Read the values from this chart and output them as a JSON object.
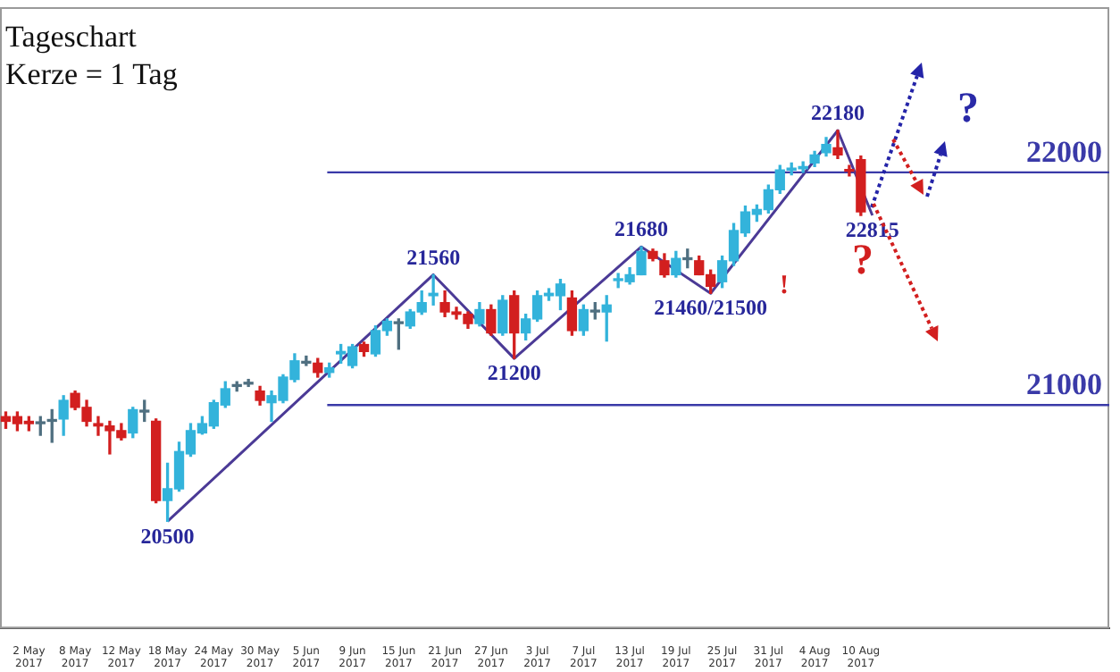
{
  "chart_data": {
    "type": "candlestick",
    "title": "Tageschart",
    "subtitle": "Kerze = 1 Tag",
    "categories": [
      null,
      null,
      "2 May 2017",
      null,
      null,
      null,
      "8 May 2017",
      null,
      null,
      null,
      "12 May 2017",
      null,
      null,
      null,
      "18 May 2017",
      null,
      null,
      null,
      "24 May 2017",
      null,
      null,
      null,
      "30 May 2017",
      null,
      null,
      null,
      "5 Jun 2017",
      null,
      null,
      null,
      "9 Jun 2017",
      null,
      null,
      null,
      "15 Jun 2017",
      null,
      null,
      null,
      "21 Jun 2017",
      null,
      null,
      null,
      "27 Jun 2017",
      null,
      null,
      null,
      "3 Jul 2017",
      null,
      null,
      null,
      "7 Jul 2017",
      null,
      null,
      null,
      "13 Jul 2017",
      null,
      null,
      null,
      "19 Jul 2017",
      null,
      null,
      null,
      "25 Jul 2017",
      null,
      null,
      null,
      "31 Jul 2017",
      null,
      null,
      null,
      "4 Aug 2017",
      null,
      null,
      null,
      "10 Aug 2017",
      null,
      null,
      null,
      null,
      null,
      null,
      null,
      null,
      null,
      null,
      null,
      null,
      null,
      null,
      null,
      null,
      null,
      null,
      null,
      null,
      null
    ],
    "ohlc": [
      [
        20950,
        20970,
        20900,
        20930
      ],
      [
        20950,
        20970,
        20890,
        20920
      ],
      [
        20930,
        20950,
        20890,
        20920
      ],
      [
        20920,
        20950,
        20870,
        20920
      ],
      [
        20930,
        20980,
        20840,
        20930
      ],
      [
        20940,
        21040,
        20870,
        21020
      ],
      [
        21050,
        21060,
        20980,
        20990
      ],
      [
        20990,
        21020,
        20910,
        20930
      ],
      [
        20920,
        20950,
        20870,
        20910
      ],
      [
        20910,
        20930,
        20790,
        20890
      ],
      [
        20890,
        20920,
        20850,
        20860
      ],
      [
        20880,
        20990,
        20860,
        20980
      ],
      [
        20970,
        21020,
        20930,
        20970
      ],
      [
        20930,
        20940,
        20580,
        20590
      ],
      [
        20590,
        20750,
        20500,
        20640
      ],
      [
        20640,
        20840,
        20630,
        20800
      ],
      [
        20790,
        20920,
        20780,
        20890
      ],
      [
        20880,
        20950,
        20875,
        20920
      ],
      [
        20910,
        21020,
        20900,
        21010
      ],
      [
        21000,
        21100,
        20990,
        21070
      ],
      [
        21080,
        21100,
        21060,
        21080
      ],
      [
        21090,
        21110,
        21080,
        21090
      ],
      [
        21060,
        21080,
        21000,
        21020
      ],
      [
        21010,
        21060,
        20930,
        21040
      ],
      [
        21020,
        21130,
        21010,
        21120
      ],
      [
        21110,
        21220,
        21100,
        21190
      ],
      [
        21180,
        21210,
        21170,
        21180
      ],
      [
        21180,
        21200,
        21120,
        21140
      ],
      [
        21140,
        21180,
        21120,
        21160
      ],
      [
        21220,
        21260,
        21180,
        21230
      ],
      [
        21170,
        21260,
        21160,
        21250
      ],
      [
        21260,
        21270,
        21210,
        21230
      ],
      [
        21220,
        21340,
        21210,
        21320
      ],
      [
        21320,
        21370,
        21300,
        21360
      ],
      [
        21350,
        21370,
        21240,
        21350
      ],
      [
        21340,
        21410,
        21330,
        21400
      ],
      [
        21400,
        21490,
        21390,
        21440
      ],
      [
        21470,
        21560,
        21430,
        21480
      ],
      [
        21440,
        21490,
        21380,
        21400
      ],
      [
        21400,
        21420,
        21370,
        21390
      ],
      [
        21390,
        21400,
        21330,
        21350
      ],
      [
        21350,
        21440,
        21340,
        21410
      ],
      [
        21410,
        21430,
        21300,
        21310
      ],
      [
        21310,
        21470,
        21300,
        21450
      ],
      [
        21470,
        21490,
        21200,
        21310
      ],
      [
        21310,
        21390,
        21280,
        21370
      ],
      [
        21370,
        21490,
        21360,
        21470
      ],
      [
        21470,
        21500,
        21450,
        21480
      ],
      [
        21470,
        21540,
        21410,
        21520
      ],
      [
        21460,
        21490,
        21300,
        21320
      ],
      [
        21320,
        21430,
        21300,
        21410
      ],
      [
        21400,
        21440,
        21370,
        21400
      ],
      [
        21400,
        21470,
        21275,
        21430
      ],
      [
        21535,
        21565,
        21505,
        21540
      ],
      [
        21530,
        21590,
        21520,
        21560
      ],
      [
        21560,
        21680,
        21560,
        21660
      ],
      [
        21660,
        21670,
        21620,
        21630
      ],
      [
        21620,
        21650,
        21550,
        21560
      ],
      [
        21560,
        21660,
        21550,
        21630
      ],
      [
        21625,
        21670,
        21590,
        21625
      ],
      [
        21620,
        21640,
        21560,
        21560
      ],
      [
        21560,
        21580,
        21480,
        21510
      ],
      [
        21530,
        21640,
        21505,
        21620
      ],
      [
        21620,
        21780,
        21600,
        21750
      ],
      [
        21740,
        21855,
        21725,
        21830
      ],
      [
        21820,
        21860,
        21790,
        21840
      ],
      [
        21840,
        21945,
        21825,
        21925
      ],
      [
        21925,
        22030,
        21910,
        22010
      ],
      [
        22010,
        22040,
        21990,
        22015
      ],
      [
        22015,
        22045,
        22000,
        22025
      ],
      [
        22040,
        22090,
        22025,
        22075
      ],
      [
        22085,
        22150,
        22070,
        22120
      ],
      [
        22105,
        22180,
        22060,
        22075
      ],
      [
        22010,
        22030,
        21985,
        22005
      ],
      [
        22055,
        22070,
        21815,
        21830
      ],
      null,
      null,
      null,
      null,
      null,
      null,
      null,
      null,
      null,
      null,
      null,
      null,
      null,
      null,
      null,
      null,
      null,
      null,
      null,
      null,
      null
    ],
    "series": [
      {
        "type": "line",
        "color": "#4b3a96",
        "values": [
          null,
          null,
          null,
          null,
          null,
          null,
          null,
          null,
          null,
          null,
          null,
          null,
          null,
          null,
          20500,
          null,
          null,
          null,
          null,
          null,
          null,
          null,
          null,
          null,
          null,
          null,
          null,
          null,
          null,
          null,
          null,
          null,
          null,
          null,
          null,
          null,
          null,
          21560,
          null,
          null,
          null,
          null,
          null,
          null,
          21200,
          null,
          null,
          null,
          null,
          null,
          null,
          null,
          null,
          null,
          null,
          21680,
          null,
          null,
          null,
          null,
          null,
          21480,
          null,
          null,
          null,
          null,
          null,
          null,
          null,
          null,
          null,
          null,
          22180,
          null,
          null,
          21815,
          null,
          null,
          null,
          null,
          null,
          null,
          null,
          null,
          null,
          null,
          null,
          null,
          null,
          null,
          null,
          null,
          null,
          null,
          null,
          null
        ]
      }
    ],
    "ref_lines": [
      {
        "axis": "y",
        "value": 22000,
        "label": "22000",
        "color": "#3a3aa8"
      },
      {
        "axis": "y",
        "value": 21000,
        "label": "21000",
        "color": "#3a3aa8"
      }
    ],
    "annotations": [
      {
        "text": "20500",
        "y": 20500
      },
      {
        "text": "21560",
        "y": 21560
      },
      {
        "text": "21200",
        "y": 21200
      },
      {
        "text": "21680",
        "y": 21680
      },
      {
        "text": "21460/21500",
        "y": 21480
      },
      {
        "text": "22180",
        "y": 22180
      },
      {
        "text": "22815",
        "y": 21815
      },
      "!",
      "?",
      "?"
    ],
    "ylim": [
      20040,
      22710
    ],
    "tick_labels": "x",
    "grid": false
  }
}
